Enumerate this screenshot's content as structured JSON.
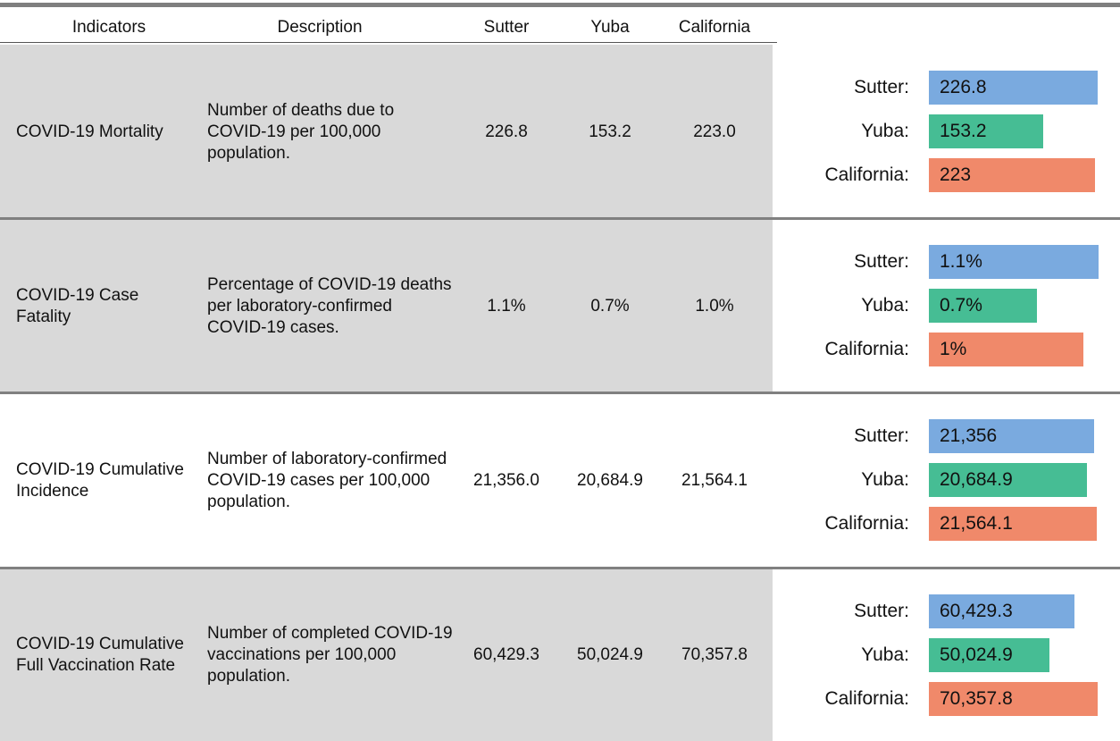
{
  "header": [
    "Indicators",
    "Description",
    "Sutter",
    "Yuba",
    "California"
  ],
  "rows": [
    {
      "indicator": "COVID-19 Mortality",
      "description": "Number of deaths due to COVID-19 per 100,000 population.",
      "values": [
        "226.8",
        "153.2",
        "223.0"
      ],
      "chart": {
        "type": "bar",
        "categories": [
          "Sutter:",
          "Yuba:",
          "California:"
        ],
        "values": [
          226.8,
          153.2,
          223
        ],
        "value_labels": [
          "226.8",
          "153.2",
          "223"
        ],
        "colors": [
          "#7aaadf",
          "#46bd94",
          "#f0896a"
        ],
        "xlim": [
          0,
          228
        ]
      }
    },
    {
      "indicator": "COVID-19 Case Fatality",
      "description": "Percentage of COVID-19 deaths per laboratory-confirmed COVID-19 cases.",
      "values": [
        "1.1%",
        "0.7%",
        "1.0%"
      ],
      "chart": {
        "type": "bar",
        "categories": [
          "Sutter:",
          "Yuba:",
          "California:"
        ],
        "values": [
          1.1,
          0.7,
          1
        ],
        "value_labels": [
          "1.1%",
          "0.7%",
          "1%"
        ],
        "colors": [
          "#7aaadf",
          "#46bd94",
          "#f0896a"
        ],
        "xlim": [
          0,
          1.1
        ]
      }
    },
    {
      "indicator": "COVID-19 Cumulative Incidence",
      "description": "Number of laboratory-confirmed COVID-19 cases per 100,000 population.",
      "values": [
        "21,356.0",
        "20,684.9",
        "21,564.1"
      ],
      "chart": {
        "type": "bar",
        "categories": [
          "Sutter:",
          "Yuba:",
          "California:"
        ],
        "values": [
          21356,
          20684.9,
          21564.1
        ],
        "value_labels": [
          "21,356",
          "20,684.9",
          "21,564.1"
        ],
        "colors": [
          "#7aaadf",
          "#46bd94",
          "#f0896a"
        ],
        "xlim": [
          7400,
          21700
        ]
      }
    },
    {
      "indicator": "COVID-19 Cumulative Full Vaccination Rate",
      "description": "Number of completed COVID-19 vaccinations per 100,000 population.",
      "values": [
        "60,429.3",
        "50,024.9",
        "70,357.8"
      ],
      "chart": {
        "type": "bar",
        "categories": [
          "Sutter:",
          "Yuba:",
          "California:"
        ],
        "values": [
          60429.3,
          50024.9,
          70357.8
        ],
        "value_labels": [
          "60,429.3",
          "50,024.9",
          "70,357.8"
        ],
        "colors": [
          "#7aaadf",
          "#46bd94",
          "#f0896a"
        ],
        "xlim": [
          0,
          70600
        ]
      }
    }
  ]
}
